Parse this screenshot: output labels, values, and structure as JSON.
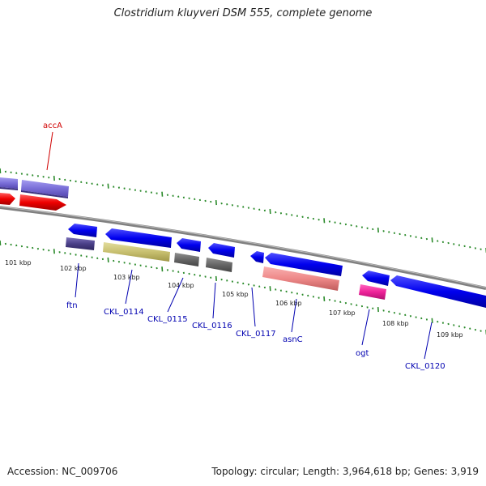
{
  "title": "Clostridium kluyveri DSM 555, complete genome",
  "footer": {
    "accession": "Accession: NC_009706",
    "stats": "Topology: circular; Length: 3,964,618 bp; Genes: 3,919"
  },
  "scale_labels": [
    "101 kbp",
    "102 kbp",
    "103 kbp",
    "104 kbp",
    "105 kbp",
    "106 kbp",
    "107 kbp",
    "108 kbp",
    "109 kbp"
  ],
  "gene_labels": {
    "accA": "accA",
    "ftn": "ftn",
    "CKL_0114": "CKL_0114",
    "CKL_0115": "CKL_0115",
    "CKL_0116": "CKL_0116",
    "CKL_0117": "CKL_0117",
    "asnC": "asnC",
    "ogt": "ogt",
    "CKL_0120": "CKL_0120"
  },
  "colors": {
    "cds_forward": "#1010e0",
    "cds_red": "#ee1010",
    "cog_purple": "#7a6fd8",
    "cog_darkpurple": "#4a3f88",
    "cog_olive": "#c8c070",
    "cog_gray": "#666666",
    "cog_salmon": "#ee8888",
    "cog_pink": "#ee2299",
    "ticks": "#2a8a2a",
    "backbone": "#777777",
    "label_blue": "#0000b0",
    "label_red": "#d00000"
  }
}
